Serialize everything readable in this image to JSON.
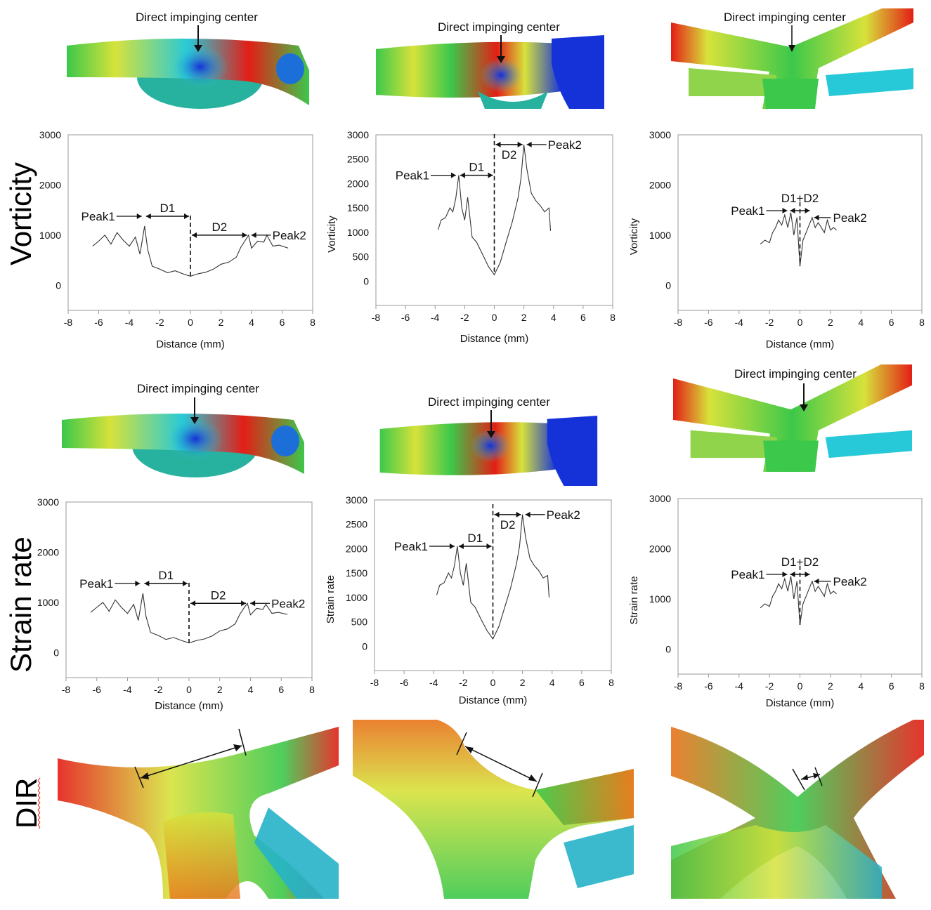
{
  "row_labels": {
    "vorticity": "Vorticity",
    "strain": "Strain rate",
    "dir": "DIR"
  },
  "callout_text": "Direct impinging center",
  "colors": {
    "blue": "#1531d8",
    "cyan": "#27c9d8",
    "green": "#3cc84a",
    "yellow": "#d7e23b",
    "red": "#e31e16",
    "line": "#333333"
  },
  "chart_data": [
    {
      "type": "line",
      "id": "vort-1",
      "xlabel": "Distance (mm)",
      "ylabel": "",
      "xlim": [
        -8,
        8
      ],
      "xticks": [
        -8,
        -6,
        -4,
        -2,
        0,
        2,
        4,
        6,
        8
      ],
      "ylim": [
        -500,
        3000
      ],
      "yticks": [
        0,
        1000,
        2000,
        3000
      ],
      "x": [
        -6.4,
        -6.0,
        -5.6,
        -5.2,
        -4.8,
        -4.4,
        -4.0,
        -3.6,
        -3.3,
        -3.0,
        -2.8,
        -2.5,
        -2.0,
        -1.5,
        -1.0,
        -0.5,
        0.0,
        0.5,
        1.0,
        1.5,
        2.0,
        2.5,
        3.0,
        3.3,
        3.6,
        3.8,
        4.0,
        4.4,
        4.8,
        5.0,
        5.4,
        5.8,
        6.4
      ],
      "y": [
        780,
        880,
        1000,
        820,
        1050,
        900,
        780,
        960,
        620,
        1180,
        720,
        380,
        320,
        250,
        290,
        230,
        180,
        230,
        260,
        320,
        420,
        460,
        560,
        760,
        900,
        1000,
        740,
        880,
        860,
        1000,
        780,
        800,
        740
      ],
      "annotations": {
        "peak1": "Peak1",
        "peak2": "Peak2",
        "d1": "D1",
        "d2": "D2"
      }
    },
    {
      "type": "line",
      "id": "vort-2",
      "xlabel": "Distance (mm)",
      "ylabel": "Vorticity",
      "xlim": [
        -8,
        8
      ],
      "xticks": [
        -8,
        -6,
        -4,
        -2,
        0,
        2,
        4,
        6,
        8
      ],
      "ylim": [
        -500,
        3000
      ],
      "yticks": [
        0,
        500,
        1000,
        1500,
        2000,
        2500,
        3000
      ],
      "x": [
        -3.8,
        -3.6,
        -3.3,
        -3.0,
        -2.8,
        -2.6,
        -2.4,
        -2.2,
        -2.0,
        -1.8,
        -1.5,
        -1.2,
        -0.8,
        -0.4,
        0.0,
        0.4,
        0.8,
        1.2,
        1.6,
        1.8,
        2.0,
        2.2,
        2.5,
        2.8,
        3.1,
        3.4,
        3.7,
        3.8
      ],
      "y": [
        1050,
        1250,
        1300,
        1500,
        1420,
        1700,
        2170,
        1500,
        1250,
        1720,
        900,
        800,
        550,
        300,
        130,
        380,
        800,
        1200,
        1700,
        2100,
        2800,
        2300,
        1800,
        1650,
        1550,
        1420,
        1500,
        1030
      ],
      "annotations": {
        "peak1": "Peak1",
        "peak2": "Peak2",
        "d1": "D1",
        "d2": "D2"
      }
    },
    {
      "type": "line",
      "id": "vort-3",
      "xlabel": "Distance (mm)",
      "ylabel": "Vorticity",
      "xlim": [
        -8,
        8
      ],
      "xticks": [
        -8,
        -6,
        -4,
        -2,
        0,
        2,
        4,
        6,
        8
      ],
      "ylim": [
        -500,
        3000
      ],
      "yticks": [
        0,
        1000,
        2000,
        3000
      ],
      "x": [
        -2.6,
        -2.3,
        -2.0,
        -1.8,
        -1.6,
        -1.4,
        -1.2,
        -1.0,
        -0.8,
        -0.6,
        -0.4,
        -0.2,
        0.0,
        0.2,
        0.4,
        0.6,
        0.8,
        1.0,
        1.2,
        1.4,
        1.6,
        1.8,
        2.0,
        2.2,
        2.4
      ],
      "y": [
        820,
        900,
        850,
        1050,
        1150,
        1300,
        1200,
        1400,
        1150,
        1450,
        1000,
        1350,
        380,
        900,
        1050,
        1200,
        1350,
        1150,
        1250,
        1150,
        1050,
        1300,
        1100,
        1150,
        1100
      ],
      "annotations": {
        "peak1": "Peak1",
        "peak2": "Peak2",
        "d1d2": "D1+D2"
      }
    },
    {
      "type": "line",
      "id": "strain-1",
      "xlabel": "Distance (mm)",
      "ylabel": "",
      "xlim": [
        -8,
        8
      ],
      "xticks": [
        -8,
        -6,
        -4,
        -2,
        0,
        2,
        4,
        6,
        8
      ],
      "ylim": [
        -500,
        3000
      ],
      "yticks": [
        0,
        1000,
        2000,
        3000
      ],
      "x": [
        -6.4,
        -6.0,
        -5.6,
        -5.2,
        -4.8,
        -4.4,
        -4.0,
        -3.6,
        -3.3,
        -3.0,
        -2.8,
        -2.5,
        -2.0,
        -1.5,
        -1.0,
        -0.5,
        0.0,
        0.5,
        1.0,
        1.5,
        2.0,
        2.5,
        3.0,
        3.3,
        3.6,
        3.8,
        4.0,
        4.4,
        4.8,
        5.0,
        5.4,
        5.8,
        6.4
      ],
      "y": [
        800,
        900,
        1000,
        820,
        1050,
        900,
        780,
        960,
        640,
        1180,
        720,
        400,
        340,
        260,
        300,
        240,
        190,
        240,
        270,
        330,
        430,
        470,
        570,
        760,
        900,
        980,
        750,
        880,
        860,
        960,
        780,
        800,
        760
      ],
      "annotations": {
        "peak1": "Peak1",
        "peak2": "Peak2",
        "d1": "D1",
        "d2": "D2"
      }
    },
    {
      "type": "line",
      "id": "strain-2",
      "xlabel": "Distance (mm)",
      "ylabel": "Strain rate",
      "xlim": [
        -8,
        8
      ],
      "xticks": [
        -8,
        -6,
        -4,
        -2,
        0,
        2,
        4,
        6,
        8
      ],
      "ylim": [
        -500,
        3000
      ],
      "yticks": [
        0,
        500,
        1000,
        1500,
        2000,
        2500,
        3000
      ],
      "x": [
        -3.8,
        -3.6,
        -3.3,
        -3.0,
        -2.8,
        -2.6,
        -2.4,
        -2.2,
        -2.0,
        -1.8,
        -1.5,
        -1.2,
        -0.8,
        -0.4,
        0.0,
        0.4,
        0.8,
        1.2,
        1.6,
        1.8,
        2.0,
        2.2,
        2.5,
        2.8,
        3.1,
        3.4,
        3.7,
        3.8
      ],
      "y": [
        1050,
        1250,
        1300,
        1500,
        1400,
        1650,
        2050,
        1500,
        1250,
        1700,
        900,
        800,
        550,
        320,
        150,
        400,
        800,
        1200,
        1700,
        2050,
        2700,
        2250,
        1800,
        1650,
        1550,
        1400,
        1450,
        1000
      ],
      "annotations": {
        "peak1": "Peak1",
        "peak2": "Peak2",
        "d1": "D1",
        "d2": "D2"
      }
    },
    {
      "type": "line",
      "id": "strain-3",
      "xlabel": "Distance (mm)",
      "ylabel": "Strain rate",
      "xlim": [
        -8,
        8
      ],
      "xticks": [
        -8,
        -6,
        -4,
        -2,
        0,
        2,
        4,
        6,
        8
      ],
      "ylim": [
        -500,
        3000
      ],
      "yticks": [
        0,
        1000,
        2000,
        3000
      ],
      "x": [
        -2.6,
        -2.3,
        -2.0,
        -1.8,
        -1.6,
        -1.4,
        -1.2,
        -1.0,
        -0.8,
        -0.6,
        -0.4,
        -0.2,
        0.0,
        0.2,
        0.4,
        0.6,
        0.8,
        1.0,
        1.2,
        1.4,
        1.6,
        1.8,
        2.0,
        2.2,
        2.4
      ],
      "y": [
        820,
        900,
        850,
        1050,
        1150,
        1300,
        1200,
        1400,
        1150,
        1450,
        1000,
        1350,
        480,
        900,
        1050,
        1200,
        1350,
        1150,
        1250,
        1150,
        1050,
        1300,
        1100,
        1150,
        1100
      ],
      "annotations": {
        "peak1": "Peak1",
        "peak2": "Peak2",
        "d1d2": "D1+D2"
      }
    }
  ]
}
